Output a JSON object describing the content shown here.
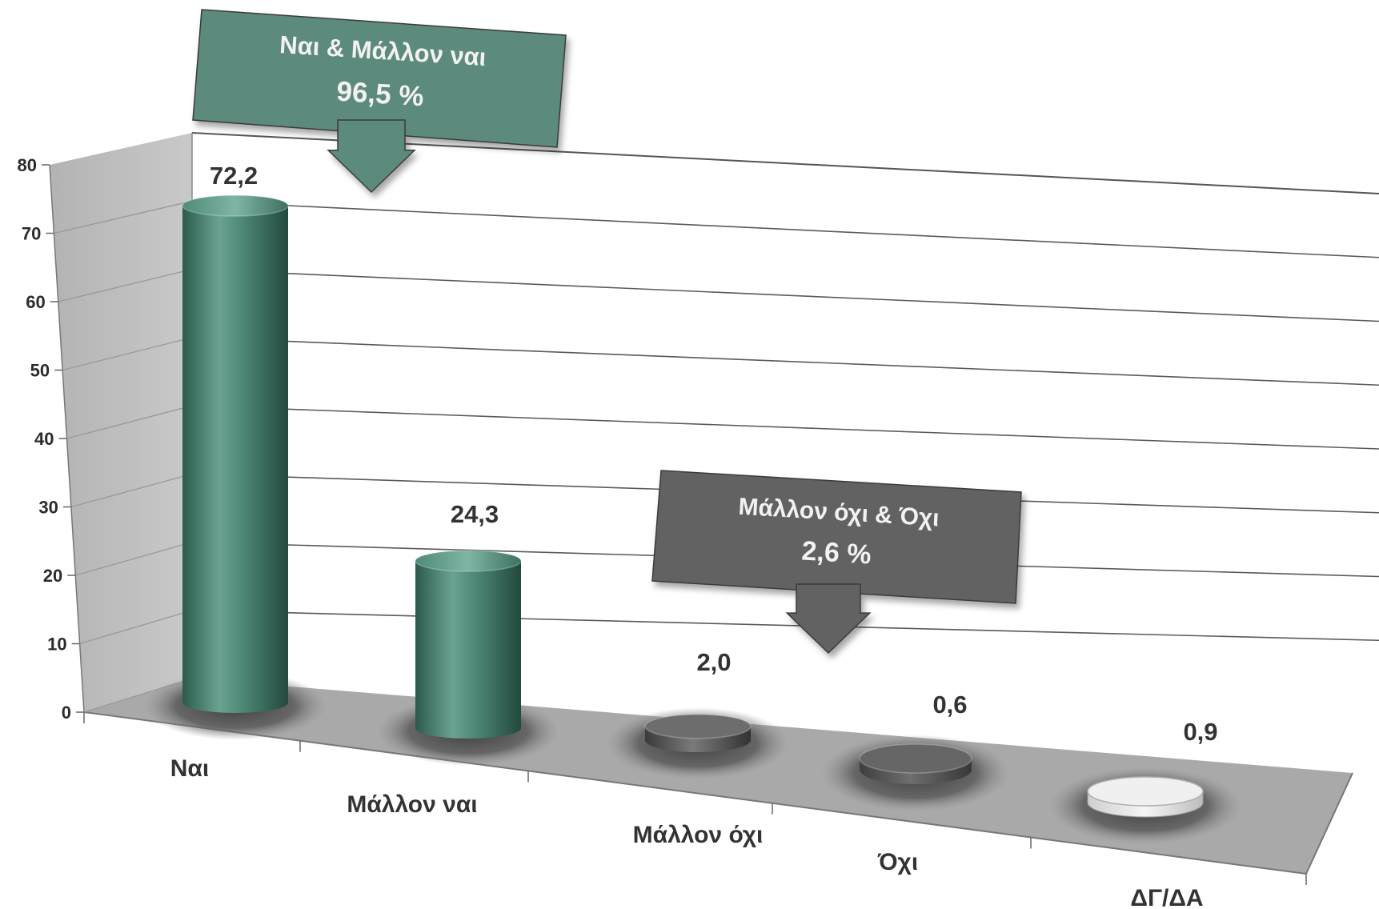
{
  "chart_data": {
    "type": "bar",
    "categories": [
      "Ναι",
      "Μάλλον ναι",
      "Μάλλον όχι",
      "Όχι",
      "ΔΓ/ΔΑ"
    ],
    "values": [
      72.2,
      24.3,
      2.0,
      0.6,
      0.9
    ],
    "value_labels": [
      "72,2",
      "24,3",
      "2,0",
      "0,6",
      "0,9"
    ],
    "title": "",
    "xlabel": "",
    "ylabel": "",
    "ylim": [
      0,
      80
    ],
    "yticks": [
      0,
      10,
      20,
      30,
      40,
      50,
      60,
      70,
      80
    ],
    "grid": true,
    "style": "3d-cylinder",
    "colors": {
      "Ναι": "#4f8a78",
      "Μάλλον ναι": "#4f8a78",
      "Μάλλον όχι": "#5f5f5f",
      "Όχι": "#5a5a5a",
      "ΔΓ/ΔΑ": "#e2e2e2"
    },
    "annotations": [
      {
        "line1": "Ναι & Μάλλον ναι",
        "line2": "96,5 %",
        "color": "#5b8a7b",
        "points_to": "Ναι"
      },
      {
        "line1": "Μάλλον όχι & Όχι",
        "line2": "2,6 %",
        "color": "#626262",
        "points_to": "Μάλλον όχι"
      }
    ]
  }
}
